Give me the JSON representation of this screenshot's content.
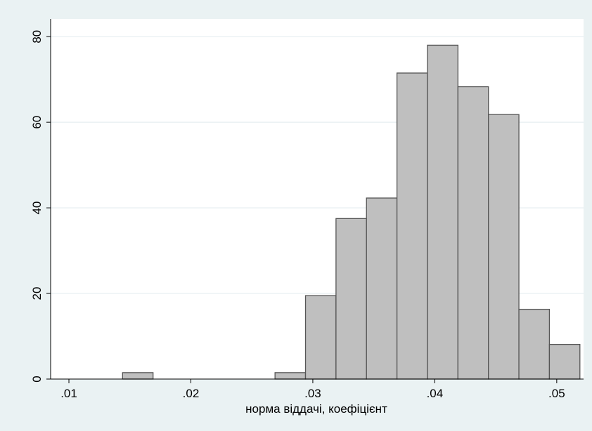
{
  "chart_data": {
    "type": "bar",
    "title": "",
    "xlabel": "норма віддачі, коефіцієнт",
    "ylabel": "",
    "xlim": [
      0.0085,
      0.0522
    ],
    "ylim": [
      0,
      82
    ],
    "x_ticks": [
      0.01,
      0.02,
      0.03,
      0.04,
      0.05
    ],
    "x_tick_labels": [
      ".01",
      ".02",
      ".03",
      ".04",
      ".05"
    ],
    "y_ticks": [
      0,
      20,
      40,
      60,
      80
    ],
    "y_tick_labels": [
      "0",
      "20",
      "40",
      "60",
      "80"
    ],
    "grid": true,
    "bins": [
      {
        "x0": 0.0144,
        "x1": 0.0169,
        "value": 1.5
      },
      {
        "x0": 0.0269,
        "x1": 0.0294,
        "value": 1.5
      },
      {
        "x0": 0.0294,
        "x1": 0.0319,
        "value": 19.5
      },
      {
        "x0": 0.0319,
        "x1": 0.0344,
        "value": 37.5
      },
      {
        "x0": 0.0344,
        "x1": 0.0369,
        "value": 42.3
      },
      {
        "x0": 0.0369,
        "x1": 0.0394,
        "value": 71.5
      },
      {
        "x0": 0.0394,
        "x1": 0.0419,
        "value": 78.0
      },
      {
        "x0": 0.0419,
        "x1": 0.0444,
        "value": 68.3
      },
      {
        "x0": 0.0444,
        "x1": 0.0469,
        "value": 61.8
      },
      {
        "x0": 0.0469,
        "x1": 0.0494,
        "value": 16.3
      },
      {
        "x0": 0.0494,
        "x1": 0.0519,
        "value": 8.1
      }
    ],
    "colors": {
      "background": "#eaf2f3",
      "plot_background": "#ffffff",
      "bar_fill": "#bfbfbf",
      "bar_stroke": "#555555",
      "grid": "#e6eef0",
      "axis": "#000000"
    }
  }
}
